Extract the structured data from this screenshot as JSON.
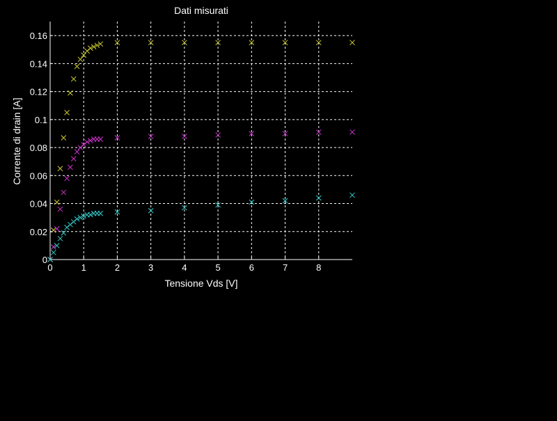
{
  "chart_data": {
    "type": "scatter",
    "title": "Dati misurati",
    "xlabel": "Tensione Vds [V]",
    "ylabel": "Corrente di drain [A]",
    "xlim": [
      0,
      9
    ],
    "ylim": [
      0,
      0.17
    ],
    "xticks": [
      "0",
      "1",
      "2",
      "3",
      "4",
      "5",
      "6",
      "7",
      "8"
    ],
    "yticks": [
      "0",
      "0.02",
      "0.04",
      "0.06",
      "0.08",
      "0.1",
      "0.12",
      "0.14",
      "0.16"
    ],
    "grid": true,
    "marker": "x",
    "series": [
      {
        "color": "#cccc33",
        "x": [
          0.0,
          0.1,
          0.2,
          0.3,
          0.4,
          0.5,
          0.6,
          0.7,
          0.8,
          0.9,
          1.0,
          1.1,
          1.2,
          1.3,
          1.4,
          1.5,
          2,
          3,
          4,
          5,
          6,
          7,
          8,
          9
        ],
        "y": [
          0.0,
          0.021,
          0.041,
          0.065,
          0.087,
          0.105,
          0.119,
          0.129,
          0.138,
          0.143,
          0.146,
          0.149,
          0.151,
          0.152,
          0.153,
          0.154,
          0.155,
          0.155,
          0.155,
          0.155,
          0.155,
          0.155,
          0.155,
          0.155
        ]
      },
      {
        "color": "#cc33cc",
        "x": [
          0.0,
          0.1,
          0.2,
          0.3,
          0.4,
          0.5,
          0.6,
          0.7,
          0.8,
          0.9,
          1.0,
          1.1,
          1.2,
          1.3,
          1.4,
          1.5,
          2,
          3,
          4,
          5,
          6,
          7,
          8,
          9
        ],
        "y": [
          0.0,
          0.009,
          0.022,
          0.036,
          0.048,
          0.058,
          0.066,
          0.072,
          0.077,
          0.08,
          0.082,
          0.084,
          0.085,
          0.086,
          0.086,
          0.086,
          0.087,
          0.088,
          0.088,
          0.089,
          0.09,
          0.09,
          0.091,
          0.091
        ]
      },
      {
        "color": "#33cccc",
        "x": [
          0.0,
          0.1,
          0.2,
          0.3,
          0.4,
          0.5,
          0.6,
          0.7,
          0.8,
          0.9,
          1.0,
          1.1,
          1.2,
          1.3,
          1.4,
          1.5,
          2,
          3,
          4,
          5,
          6,
          7,
          8,
          9
        ],
        "y": [
          0.0,
          0.005,
          0.01,
          0.015,
          0.019,
          0.023,
          0.025,
          0.027,
          0.029,
          0.03,
          0.031,
          0.032,
          0.032,
          0.033,
          0.033,
          0.033,
          0.034,
          0.035,
          0.037,
          0.039,
          0.041,
          0.042,
          0.044,
          0.046
        ]
      }
    ]
  }
}
